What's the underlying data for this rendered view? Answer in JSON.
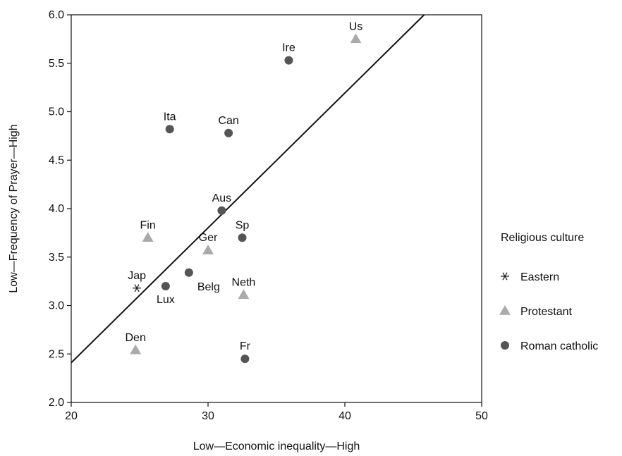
{
  "chart_data": {
    "type": "scatter",
    "xlabel": "Low—Economic inequality—High",
    "ylabel": "Low—Frequency of Prayer—High",
    "xlim": [
      20,
      50
    ],
    "ylim": [
      2.0,
      6.0
    ],
    "xticks": [
      20,
      30,
      40,
      50
    ],
    "xtick_labels": [
      "20",
      "30",
      "40",
      "50"
    ],
    "yticks": [
      2.0,
      2.5,
      3.0,
      3.5,
      4.0,
      4.5,
      5.0,
      5.5,
      6.0
    ],
    "ytick_labels": [
      "2.0",
      "2.5",
      "3.0",
      "3.5",
      "4.0",
      "4.5",
      "5.0",
      "5.5",
      "6.0"
    ],
    "grid": false,
    "legend": {
      "title": "Religious culture",
      "placement": "right",
      "entries": [
        {
          "name": "Eastern",
          "marker": "asterisk",
          "color": "#222222"
        },
        {
          "name": "Protestant",
          "marker": "triangle",
          "color": "#aaaaaa"
        },
        {
          "name": "Roman catholic",
          "marker": "circle",
          "color": "#555555"
        }
      ]
    },
    "fit_line": {
      "x": [
        20,
        45.8
      ],
      "y": [
        2.41,
        6.0
      ]
    },
    "points": [
      {
        "label": "Us",
        "x": 40.8,
        "y": 5.75,
        "group": "Protestant",
        "label_pos": "above"
      },
      {
        "label": "Ire",
        "x": 35.9,
        "y": 5.53,
        "group": "Roman catholic",
        "label_pos": "above"
      },
      {
        "label": "Ita",
        "x": 27.2,
        "y": 4.82,
        "group": "Roman catholic",
        "label_pos": "above"
      },
      {
        "label": "Can",
        "x": 31.5,
        "y": 4.78,
        "group": "Roman catholic",
        "label_pos": "above"
      },
      {
        "label": "Aus",
        "x": 31.0,
        "y": 3.98,
        "group": "Roman catholic",
        "label_pos": "above"
      },
      {
        "label": "Fin",
        "x": 25.6,
        "y": 3.7,
        "group": "Protestant",
        "label_pos": "above"
      },
      {
        "label": "Sp",
        "x": 32.5,
        "y": 3.7,
        "group": "Roman catholic",
        "label_pos": "above"
      },
      {
        "label": "Ger",
        "x": 30.0,
        "y": 3.57,
        "group": "Protestant",
        "label_pos": "above"
      },
      {
        "label": "Belg",
        "x": 28.6,
        "y": 3.34,
        "group": "Roman catholic",
        "label_pos": "below-right"
      },
      {
        "label": "Jap",
        "x": 24.8,
        "y": 3.18,
        "group": "Eastern",
        "label_pos": "above"
      },
      {
        "label": "Lux",
        "x": 26.9,
        "y": 3.2,
        "group": "Roman catholic",
        "label_pos": "below"
      },
      {
        "label": "Neth",
        "x": 32.6,
        "y": 3.11,
        "group": "Protestant",
        "label_pos": "above"
      },
      {
        "label": "Den",
        "x": 24.7,
        "y": 2.54,
        "group": "Protestant",
        "label_pos": "above"
      },
      {
        "label": "Fr",
        "x": 32.7,
        "y": 2.45,
        "group": "Roman catholic",
        "label_pos": "above"
      }
    ]
  }
}
